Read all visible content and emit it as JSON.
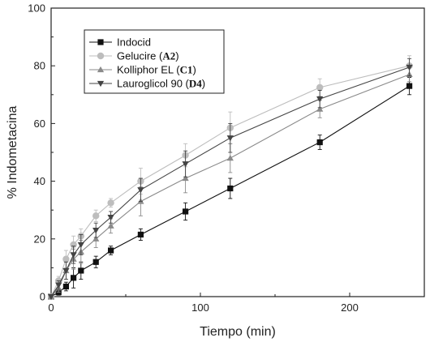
{
  "chart_data": {
    "type": "line",
    "xlabel": "Tiempo (min)",
    "ylabel": "% Indometacina",
    "xlim": [
      0,
      250
    ],
    "ylim": [
      0,
      100
    ],
    "xticks": [
      0,
      100,
      200
    ],
    "yticks": [
      0,
      20,
      40,
      60,
      80,
      100
    ],
    "grid": false,
    "legend_position": "top-left",
    "series": [
      {
        "name": "Indocid",
        "marker": "square",
        "color": "#111111",
        "x": [
          0,
          5,
          10,
          15,
          20,
          30,
          40,
          60,
          90,
          120,
          180,
          240
        ],
        "y": [
          0,
          1.5,
          3.5,
          6.5,
          9,
          12,
          16,
          21.5,
          29.5,
          37.5,
          53.5,
          73
        ],
        "err": [
          0,
          1,
          1.5,
          3.5,
          3,
          2,
          1.5,
          2,
          3,
          3.5,
          2.5,
          3
        ]
      },
      {
        "name": "Gelucire (A2)",
        "name_prefix": "Gelucire (",
        "name_code": "A2",
        "name_suffix": ")",
        "marker": "circle",
        "color": "#bdbdbd",
        "x": [
          0,
          5,
          10,
          15,
          20,
          30,
          40,
          60,
          90,
          120,
          180,
          240
        ],
        "y": [
          0,
          5.5,
          13,
          18,
          21,
          28,
          32.5,
          40,
          49,
          58.5,
          72.5,
          80
        ],
        "err": [
          0,
          1.5,
          3,
          3,
          2.5,
          2,
          1.5,
          4.5,
          4,
          5.5,
          3,
          3.5
        ]
      },
      {
        "name": "Kolliphor EL (C1)",
        "name_prefix": "Kolliphor EL (",
        "name_code": "C1",
        "name_suffix": ")",
        "marker": "triangle-up",
        "color": "#8a8a8a",
        "x": [
          0,
          5,
          10,
          15,
          20,
          30,
          40,
          60,
          90,
          120,
          180,
          240
        ],
        "y": [
          0,
          3,
          9,
          13,
          15.5,
          20,
          24.5,
          33,
          41,
          48,
          65,
          77
        ],
        "err": [
          0,
          1.5,
          3,
          3.5,
          4,
          3,
          2.5,
          5,
          5,
          5,
          3,
          2.5
        ]
      },
      {
        "name": "Lauroglicol 90 (D4)",
        "name_prefix": "Lauroglicol 90 (",
        "name_code": "D4",
        "name_suffix": ")",
        "marker": "triangle-down",
        "color": "#444444",
        "x": [
          0,
          5,
          10,
          15,
          20,
          30,
          40,
          60,
          90,
          120,
          180,
          240
        ],
        "y": [
          0,
          4,
          9,
          14.5,
          18,
          23,
          27.5,
          37,
          46,
          55,
          68.5,
          79.5
        ],
        "err": [
          0,
          1.5,
          3,
          3,
          3.5,
          2.5,
          2,
          4,
          4.5,
          5,
          3,
          3
        ]
      }
    ]
  }
}
